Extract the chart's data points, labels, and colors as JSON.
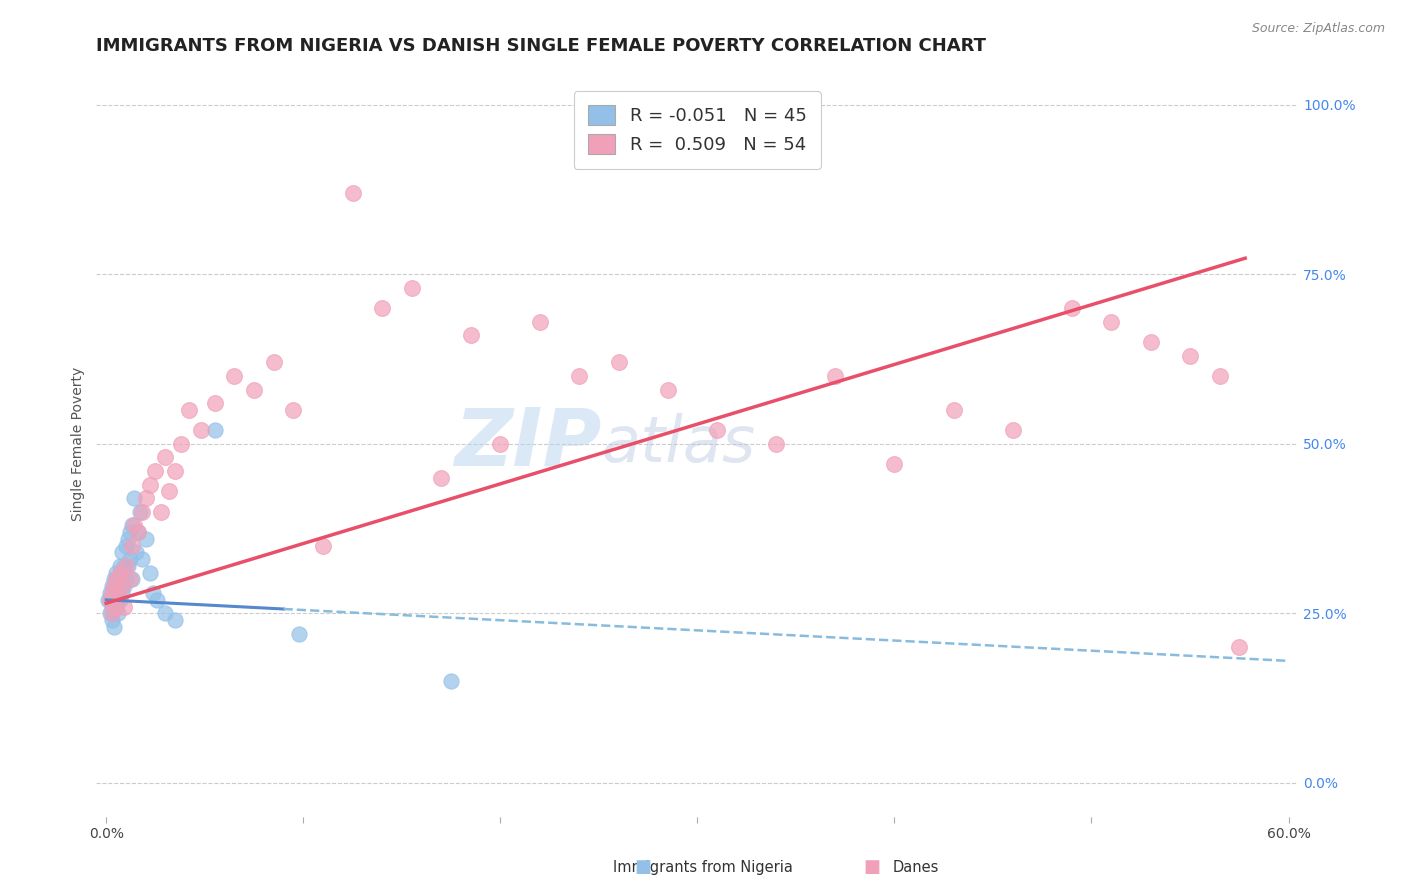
{
  "title": "IMMIGRANTS FROM NIGERIA VS DANISH SINGLE FEMALE POVERTY CORRELATION CHART",
  "source_text": "Source: ZipAtlas.com",
  "ylabel": "Single Female Poverty",
  "xlim": [
    -0.005,
    0.605
  ],
  "ylim": [
    -0.05,
    1.05
  ],
  "x_ticks": [
    0.0,
    0.1,
    0.2,
    0.3,
    0.4,
    0.5,
    0.6
  ],
  "y_ticks_right": [
    0.0,
    0.25,
    0.5,
    0.75,
    1.0
  ],
  "y_tick_labels_right": [
    "0.0%",
    "25.0%",
    "50.0%",
    "75.0%",
    "100.0%"
  ],
  "legend_r1": "R = -0.051",
  "legend_n1": "N = 45",
  "legend_r2": "R =  0.509",
  "legend_n2": "N = 54",
  "blue_color": "#92c0e8",
  "pink_color": "#f0a0b8",
  "trend_blue_solid": "#5588cc",
  "trend_blue_dash": "#88bbdd",
  "trend_pink": "#e8506a",
  "watermark_zip": "ZIP",
  "watermark_atlas": "atlas",
  "bg_color": "#ffffff",
  "grid_color": "#cccccc",
  "title_fontsize": 13,
  "axis_label_fontsize": 10,
  "tick_fontsize": 10,
  "blue_scatter_x": [
    0.001,
    0.002,
    0.002,
    0.003,
    0.003,
    0.003,
    0.004,
    0.004,
    0.004,
    0.005,
    0.005,
    0.005,
    0.006,
    0.006,
    0.006,
    0.007,
    0.007,
    0.007,
    0.008,
    0.008,
    0.008,
    0.009,
    0.009,
    0.01,
    0.01,
    0.011,
    0.011,
    0.012,
    0.012,
    0.013,
    0.013,
    0.014,
    0.015,
    0.016,
    0.017,
    0.018,
    0.02,
    0.022,
    0.024,
    0.026,
    0.03,
    0.035,
    0.055,
    0.098,
    0.175
  ],
  "blue_scatter_y": [
    0.27,
    0.25,
    0.28,
    0.26,
    0.29,
    0.24,
    0.27,
    0.3,
    0.23,
    0.26,
    0.28,
    0.31,
    0.25,
    0.27,
    0.3,
    0.27,
    0.29,
    0.32,
    0.28,
    0.31,
    0.34,
    0.29,
    0.32,
    0.3,
    0.35,
    0.32,
    0.36,
    0.33,
    0.37,
    0.3,
    0.38,
    0.42,
    0.34,
    0.37,
    0.4,
    0.33,
    0.36,
    0.31,
    0.28,
    0.27,
    0.25,
    0.24,
    0.52,
    0.22,
    0.15
  ],
  "pink_scatter_x": [
    0.002,
    0.003,
    0.003,
    0.004,
    0.005,
    0.005,
    0.006,
    0.007,
    0.008,
    0.009,
    0.01,
    0.012,
    0.013,
    0.014,
    0.016,
    0.018,
    0.02,
    0.022,
    0.025,
    0.028,
    0.03,
    0.032,
    0.035,
    0.038,
    0.042,
    0.048,
    0.055,
    0.065,
    0.075,
    0.085,
    0.095,
    0.11,
    0.125,
    0.14,
    0.155,
    0.17,
    0.185,
    0.2,
    0.22,
    0.24,
    0.26,
    0.285,
    0.31,
    0.34,
    0.37,
    0.4,
    0.43,
    0.46,
    0.49,
    0.51,
    0.53,
    0.55,
    0.565,
    0.575
  ],
  "pink_scatter_y": [
    0.27,
    0.25,
    0.28,
    0.29,
    0.26,
    0.3,
    0.28,
    0.31,
    0.29,
    0.26,
    0.32,
    0.3,
    0.35,
    0.38,
    0.37,
    0.4,
    0.42,
    0.44,
    0.46,
    0.4,
    0.48,
    0.43,
    0.46,
    0.5,
    0.55,
    0.52,
    0.56,
    0.6,
    0.58,
    0.62,
    0.55,
    0.35,
    0.87,
    0.7,
    0.73,
    0.45,
    0.66,
    0.5,
    0.68,
    0.6,
    0.62,
    0.58,
    0.52,
    0.5,
    0.6,
    0.47,
    0.55,
    0.52,
    0.7,
    0.68,
    0.65,
    0.63,
    0.6,
    0.2
  ],
  "trend_blue_intercept": 0.27,
  "trend_blue_slope": -0.15,
  "trend_pink_intercept": 0.265,
  "trend_pink_slope": 0.88
}
